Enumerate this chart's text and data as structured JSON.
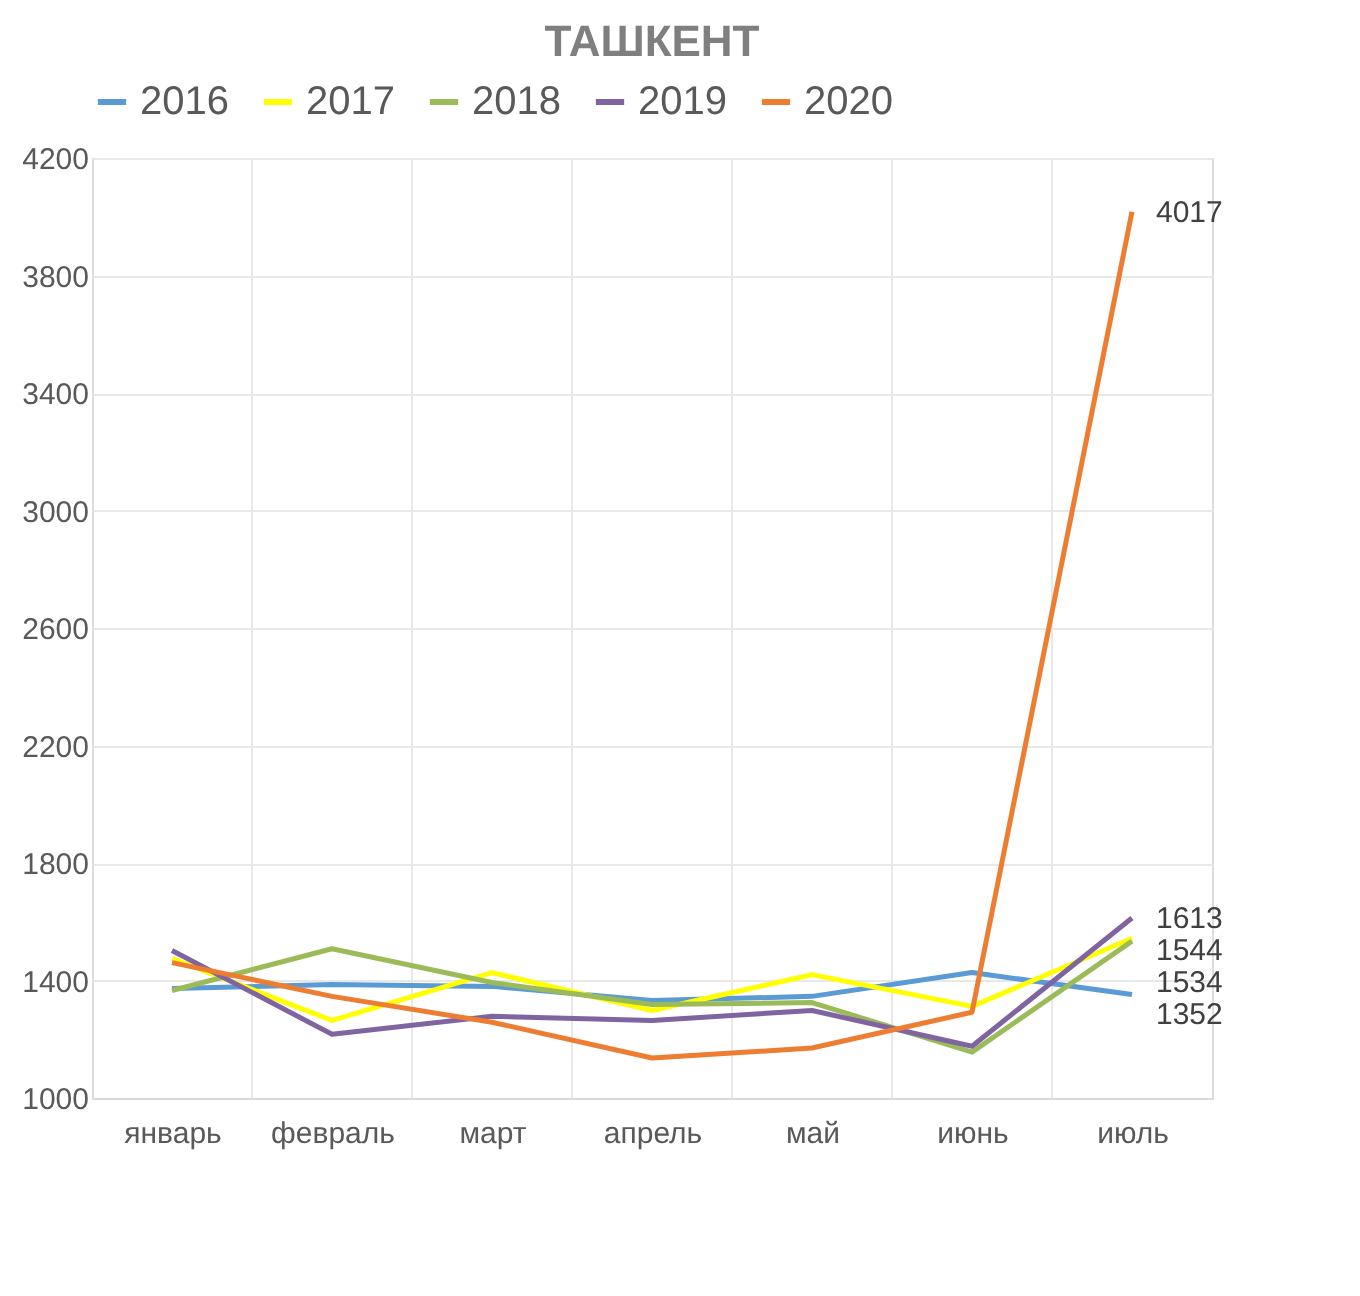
{
  "chart_data": {
    "type": "line",
    "title": "ТАШКЕНТ",
    "categories": [
      "январь",
      "февраль",
      "март",
      "апрель",
      "май",
      "июнь",
      "июль"
    ],
    "series": [
      {
        "name": "2016",
        "color": "#5b9bd5",
        "values": [
          1373,
          1386,
          1380,
          1332,
          1346,
          1427,
          1352
        ],
        "value_labels": [
          null,
          null,
          null,
          null,
          null,
          null,
          "1352"
        ]
      },
      {
        "name": "2017",
        "color": "#ffff00",
        "values": [
          1475,
          1264,
          1427,
          1298,
          1420,
          1312,
          1544
        ],
        "value_labels": [
          null,
          null,
          null,
          null,
          null,
          null,
          "1544"
        ]
      },
      {
        "name": "2018",
        "color": "#9bbb59",
        "values": [
          1366,
          1508,
          1393,
          1318,
          1325,
          1156,
          1534
        ],
        "value_labels": [
          null,
          null,
          null,
          null,
          null,
          null,
          "1534"
        ]
      },
      {
        "name": "2019",
        "color": "#8064a2",
        "values": [
          1502,
          1217,
          1278,
          1264,
          1298,
          1176,
          1613
        ],
        "value_labels": [
          null,
          null,
          null,
          null,
          null,
          null,
          "1613"
        ]
      },
      {
        "name": "2020",
        "color": "#ed7d31",
        "values": [
          1461,
          1346,
          1258,
          1136,
          1170,
          1292,
          4017
        ],
        "value_labels": [
          null,
          null,
          null,
          null,
          null,
          null,
          "4017"
        ]
      }
    ],
    "ylim": [
      1000,
      4200
    ],
    "yticks": [
      1000,
      1400,
      1800,
      2200,
      2600,
      3000,
      3400,
      3800,
      4200
    ],
    "grid": true,
    "legend": "top",
    "marker": "none",
    "line_style": "solid"
  }
}
